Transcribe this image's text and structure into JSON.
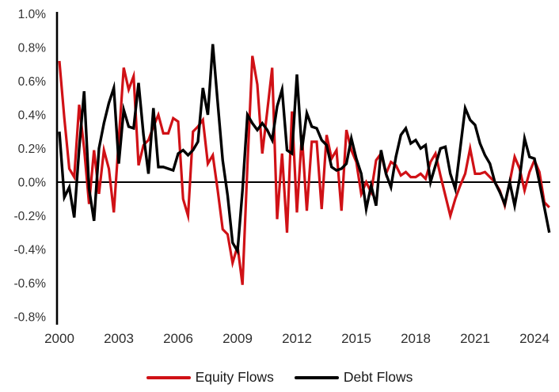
{
  "chart_data": {
    "type": "line",
    "title": "",
    "xlabel": "",
    "ylabel": "",
    "x_start": "2000-Q1",
    "x_interval": "quarter",
    "grid": false,
    "legend_position": "bottom",
    "ylim": [
      -0.8,
      1.0
    ],
    "y_ticks": {
      "labels": [
        "1.0%",
        "0.8%",
        "0.6%",
        "0.4%",
        "0.2%",
        "0.0%",
        "-0.2%",
        "-0.4%",
        "-0.6%",
        "-0.8%"
      ],
      "values": [
        1.0,
        0.8,
        0.6,
        0.4,
        0.2,
        0.0,
        -0.2,
        -0.4,
        -0.6,
        -0.8
      ]
    },
    "x_ticks": {
      "labels": [
        "2000",
        "2003",
        "2006",
        "2009",
        "2012",
        "2015",
        "2018",
        "2021",
        "2024"
      ],
      "values": [
        2000,
        2003,
        2006,
        2009,
        2012,
        2015,
        2018,
        2021,
        2024
      ]
    },
    "axis_color": "#000000",
    "series": [
      {
        "name": "Equity Flows",
        "color": "#d01116",
        "unit": "%",
        "values": [
          0.72,
          0.38,
          0.08,
          0.03,
          0.46,
          0.2,
          -0.13,
          0.19,
          -0.07,
          0.19,
          0.08,
          -0.18,
          0.25,
          0.68,
          0.55,
          0.63,
          0.1,
          0.22,
          0.25,
          0.33,
          0.4,
          0.29,
          0.29,
          0.38,
          0.36,
          -0.1,
          -0.2,
          0.3,
          0.33,
          0.37,
          0.11,
          0.16,
          -0.05,
          -0.28,
          -0.31,
          -0.48,
          -0.38,
          -0.61,
          0.1,
          0.75,
          0.58,
          0.17,
          0.42,
          0.68,
          -0.22,
          0.17,
          -0.3,
          0.42,
          -0.18,
          0.28,
          -0.17,
          0.24,
          0.24,
          -0.16,
          0.28,
          0.14,
          0.19,
          -0.17,
          0.31,
          0.19,
          0.12,
          -0.07,
          0.0,
          -0.06,
          0.13,
          0.17,
          0.05,
          0.12,
          0.1,
          0.04,
          0.06,
          0.03,
          0.03,
          0.05,
          0.02,
          0.12,
          0.17,
          0.04,
          -0.08,
          -0.2,
          -0.1,
          -0.02,
          0.05,
          0.2,
          0.05,
          0.05,
          0.06,
          0.03,
          0.0,
          -0.05,
          -0.14,
          0.0,
          0.15,
          0.08,
          -0.05,
          0.06,
          0.13,
          0.06,
          -0.12,
          -0.15
        ]
      },
      {
        "name": "Debt Flows",
        "color": "#000000",
        "unit": "%",
        "values": [
          0.3,
          -0.09,
          -0.03,
          -0.21,
          0.2,
          0.54,
          -0.04,
          -0.23,
          0.2,
          0.35,
          0.47,
          0.56,
          0.11,
          0.43,
          0.33,
          0.32,
          0.59,
          0.28,
          0.05,
          0.44,
          0.09,
          0.09,
          0.08,
          0.07,
          0.17,
          0.19,
          0.16,
          0.19,
          0.24,
          0.56,
          0.4,
          0.82,
          0.47,
          0.13,
          -0.08,
          -0.36,
          -0.41,
          -0.05,
          0.4,
          0.35,
          0.31,
          0.35,
          0.31,
          0.25,
          0.45,
          0.55,
          0.19,
          0.17,
          0.64,
          0.19,
          0.41,
          0.33,
          0.32,
          0.25,
          0.22,
          0.09,
          0.07,
          0.08,
          0.11,
          0.26,
          0.14,
          0.05,
          -0.16,
          -0.02,
          -0.14,
          0.19,
          0.05,
          -0.03,
          0.15,
          0.28,
          0.32,
          0.23,
          0.25,
          0.2,
          0.22,
          0.0,
          0.1,
          0.2,
          0.21,
          0.05,
          -0.04,
          0.2,
          0.44,
          0.37,
          0.34,
          0.23,
          0.16,
          0.11,
          0.0,
          -0.06,
          -0.13,
          0.0,
          -0.14,
          0.02,
          0.26,
          0.15,
          0.14,
          0.0,
          -0.15,
          -0.3
        ]
      }
    ]
  },
  "legend": {
    "equity_label": "Equity Flows",
    "debt_label": "Debt Flows"
  }
}
